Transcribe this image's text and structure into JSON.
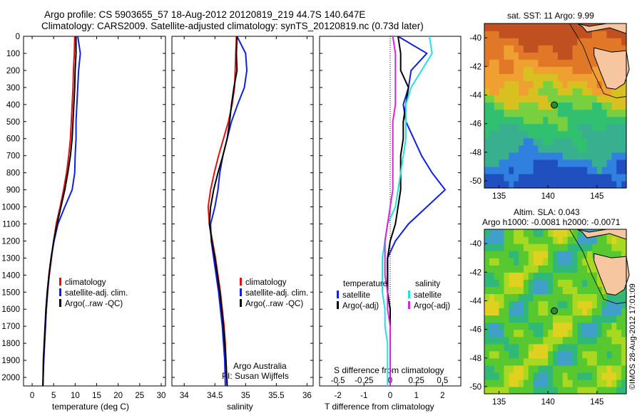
{
  "header": {
    "line1": "Argo profile: CS 5903655_57 18-Aug-2012 20120819_219 44.7S 140.647E",
    "line2": "Climatology: CARS2009. Satellite-adjusted climatology: synTS_20120819.nc (0.73d later)"
  },
  "colors": {
    "climatology": "#e01010",
    "satellite": "#1020e0",
    "argo": "#000000",
    "sat_salinity": "#20e0e0",
    "argo_salinity": "#e020e0"
  },
  "icons": {
    "legend_swatch": "colored-bar-icon"
  },
  "chart_data": [
    {
      "type": "line",
      "xlabel": "temperature (deg C)",
      "ylabel": "",
      "xlim": [
        -2,
        31
      ],
      "ylim": [
        2050,
        0
      ],
      "xticks": [
        "0",
        "5",
        "10",
        "15",
        "20",
        "25",
        "30"
      ],
      "yticks": [
        "0",
        "100",
        "200",
        "300",
        "400",
        "500",
        "600",
        "700",
        "800",
        "900",
        "1000",
        "1100",
        "1200",
        "1300",
        "1400",
        "1500",
        "1600",
        "1700",
        "1800",
        "1900",
        "2000"
      ],
      "legend": [
        "climatology",
        "satellite-adj. clim.",
        "Argo(..raw -QC)"
      ],
      "series": [
        {
          "name": "climatology",
          "color": "#e01010",
          "x": [
            9.9,
            9.8,
            9.6,
            9.5,
            9.3,
            9.1,
            8.9,
            8.5,
            8.0,
            7.3,
            6.5,
            5.6,
            5.0,
            4.5,
            4.0,
            3.6,
            3.3,
            3.1,
            2.9,
            2.7,
            2.5
          ],
          "y": [
            0,
            100,
            200,
            300,
            400,
            500,
            600,
            700,
            800,
            900,
            1000,
            1100,
            1200,
            1300,
            1400,
            1500,
            1600,
            1700,
            1800,
            1900,
            2050
          ]
        },
        {
          "name": "satellite-adj. clim.",
          "color": "#1020e0",
          "x": [
            10.6,
            11.2,
            10.8,
            10.6,
            10.4,
            10.2,
            10.2,
            10.0,
            9.9,
            9.3,
            7.6,
            6.0,
            5.1,
            4.4,
            3.9,
            3.6,
            3.3,
            3.1,
            2.9,
            2.7,
            2.5
          ],
          "y": [
            0,
            100,
            200,
            300,
            400,
            500,
            600,
            700,
            800,
            900,
            1000,
            1100,
            1200,
            1300,
            1400,
            1500,
            1600,
            1700,
            1800,
            1900,
            2050
          ]
        },
        {
          "name": "Argo(..raw -QC)",
          "color": "#000000",
          "x": [
            10.2,
            10.2,
            10.0,
            9.9,
            9.7,
            9.5,
            9.3,
            8.9,
            8.3,
            7.6,
            6.7,
            5.8,
            5.0,
            4.4,
            3.9,
            3.5,
            3.2,
            3.0,
            2.8,
            2.6,
            2.5
          ],
          "y": [
            0,
            100,
            200,
            300,
            400,
            500,
            600,
            700,
            800,
            900,
            1000,
            1100,
            1200,
            1300,
            1400,
            1500,
            1600,
            1700,
            1800,
            1900,
            2050
          ]
        }
      ]
    },
    {
      "type": "line",
      "xlabel": "salinity",
      "xlim": [
        33.8,
        36.1
      ],
      "ylim": [
        2050,
        0
      ],
      "xticks": [
        "34",
        "34.5",
        "35",
        "35.5",
        "36"
      ],
      "legend": [
        "climatology",
        "satellite-adj. clim.",
        "Argo(..raw -QC)"
      ],
      "annotation": [
        "Argo Australia",
        "PI: Susan Wijffels"
      ],
      "series": [
        {
          "name": "climatology",
          "color": "#e01010",
          "x": [
            34.85,
            34.84,
            34.83,
            34.82,
            34.78,
            34.72,
            34.64,
            34.56,
            34.49,
            34.43,
            34.39,
            34.41,
            34.46,
            34.51,
            34.55,
            34.59,
            34.62,
            34.65,
            34.67,
            34.68,
            34.7
          ],
          "y": [
            0,
            100,
            200,
            300,
            400,
            500,
            600,
            700,
            800,
            900,
            1000,
            1100,
            1200,
            1300,
            1400,
            1500,
            1600,
            1700,
            1800,
            1900,
            2050
          ]
        },
        {
          "name": "satellite-adj. clim.",
          "color": "#1020e0",
          "x": [
            34.86,
            35.0,
            35.02,
            34.98,
            34.87,
            34.77,
            34.7,
            34.63,
            34.58,
            34.55,
            34.5,
            34.43,
            34.44,
            34.48,
            34.52,
            34.56,
            34.59,
            34.62,
            34.64,
            34.66,
            34.67
          ],
          "y": [
            0,
            100,
            200,
            300,
            400,
            500,
            600,
            700,
            800,
            900,
            1000,
            1100,
            1200,
            1300,
            1400,
            1500,
            1600,
            1700,
            1800,
            1900,
            2050
          ]
        },
        {
          "name": "Argo(..raw -QC)",
          "color": "#000000",
          "x": [
            34.86,
            34.85,
            34.86,
            34.81,
            34.77,
            34.74,
            34.7,
            34.63,
            34.55,
            34.48,
            34.43,
            34.41,
            34.45,
            34.5,
            34.54,
            34.58,
            34.61,
            34.64,
            34.66,
            34.68,
            34.7
          ],
          "y": [
            0,
            100,
            200,
            300,
            400,
            500,
            600,
            700,
            800,
            900,
            1000,
            1100,
            1200,
            1300,
            1400,
            1500,
            1600,
            1700,
            1800,
            1900,
            2050
          ]
        }
      ]
    },
    {
      "type": "line",
      "xlabel": "T difference from climatology",
      "xlabel_top": "S difference from climatology",
      "xticks_T": [
        "-2",
        "-1",
        "0",
        "1",
        "2"
      ],
      "xticks_S": [
        "-0.5",
        "-0.25",
        "0",
        "0.25",
        "0.5"
      ],
      "xlim": [
        -2.7,
        2.7
      ],
      "ylim": [
        2050,
        0
      ],
      "legend_headers": [
        "temperature",
        "salinity"
      ],
      "legend": [
        "satellite",
        "Argo(-adj)",
        "satellite",
        "Argo(-adj)"
      ],
      "series": [
        {
          "name": "satellite",
          "color": "#1020e0",
          "x": [
            0.3,
            1.4,
            0.8,
            0.7,
            0.5,
            0.6,
            0.9,
            1.2,
            1.6,
            2.1,
            1.4,
            0.7,
            0.2,
            -0.1,
            -0.1,
            -0.1,
            0.0,
            0.0,
            0.0,
            0.0,
            0.0
          ],
          "y": [
            0,
            100,
            200,
            300,
            400,
            500,
            600,
            700,
            800,
            900,
            1000,
            1100,
            1200,
            1300,
            1400,
            1500,
            1600,
            1700,
            1800,
            1900,
            2050
          ]
        },
        {
          "name": "Argo(-adj)",
          "color": "#000000",
          "x": [
            0.3,
            0.4,
            0.4,
            0.7,
            0.6,
            0.5,
            0.5,
            0.4,
            0.4,
            0.4,
            0.3,
            0.2,
            0.0,
            -0.1,
            -0.1,
            -0.1,
            0.0,
            0.0,
            0.0,
            0.0,
            0.0
          ],
          "y": [
            0,
            100,
            200,
            300,
            400,
            500,
            600,
            700,
            800,
            900,
            1000,
            1100,
            1200,
            1300,
            1400,
            1500,
            1600,
            1700,
            1800,
            1900,
            2050
          ]
        },
        {
          "name": "satellite",
          "color": "#20e0e0",
          "x": [
            1.5,
            1.6,
            1.2,
            0.8,
            0.6,
            0.6,
            0.6,
            0.5,
            0.4,
            0.3,
            0.2,
            -0.1,
            -0.2,
            -0.3,
            -0.3,
            -0.3,
            -0.2,
            -0.2,
            -0.1,
            -0.1,
            -0.1
          ],
          "y": [
            0,
            100,
            200,
            300,
            400,
            500,
            600,
            700,
            800,
            900,
            1000,
            1100,
            1200,
            1300,
            1400,
            1500,
            1600,
            1700,
            1800,
            1900,
            2050
          ]
        },
        {
          "name": "Argo(-adj)",
          "color": "#e020e0",
          "x": [
            0.1,
            0.2,
            0.2,
            0.2,
            0.2,
            0.1,
            0.1,
            0.1,
            0.1,
            0.1,
            0.0,
            -0.1,
            -0.2,
            -0.2,
            -0.2,
            -0.1,
            -0.1,
            0.0,
            0.0,
            0.0,
            0.0
          ],
          "y": [
            0,
            100,
            200,
            300,
            400,
            500,
            600,
            700,
            800,
            900,
            1000,
            1100,
            1200,
            1300,
            1400,
            1500,
            1600,
            1700,
            1800,
            1900,
            2050
          ]
        }
      ]
    },
    {
      "type": "heatmap",
      "title": "sat. SST: 11 Argo: 9.99",
      "xticks": [
        "135",
        "140",
        "145"
      ],
      "yticks": [
        "-40",
        "-42",
        "-44",
        "-46",
        "-48",
        "-50"
      ],
      "xlim": [
        133.5,
        148
      ],
      "ylim": [
        -50.5,
        -39
      ],
      "argo_marker": {
        "lon": 140.647,
        "lat": -44.7
      }
    },
    {
      "type": "heatmap",
      "title": "Altim. SLA: 0.043",
      "subtitle": "Argo h1000: -0.0081 h2000: -0.0071",
      "xticks": [
        "135",
        "140",
        "145"
      ],
      "yticks": [
        "-40",
        "-42",
        "-44",
        "-46",
        "-48",
        "-50"
      ],
      "xlim": [
        133.5,
        148
      ],
      "ylim": [
        -50.5,
        -39
      ],
      "argo_marker": {
        "lon": 140.647,
        "lat": -44.7
      }
    }
  ],
  "footer_stamp": "©IMOS 28-Aug-2012 17:01:09"
}
